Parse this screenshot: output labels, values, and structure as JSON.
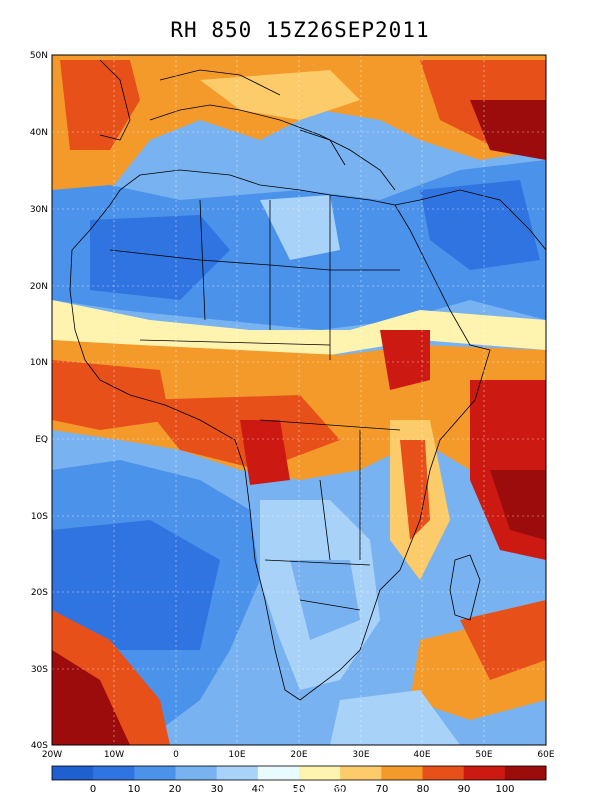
{
  "title": "RH 850 15Z26SEP2011",
  "watermark": "albran.com",
  "lat_labels": [
    "50N",
    "40N",
    "30N",
    "20N",
    "10N",
    "EQ",
    "10S",
    "20S",
    "30S",
    "40S"
  ],
  "lon_labels": [
    "20W",
    "10W",
    "0",
    "10E",
    "20E",
    "30E",
    "40E",
    "50E",
    "60E"
  ],
  "colorbar": {
    "labels": [
      "0",
      "10",
      "20",
      "30",
      "40",
      "50",
      "60",
      "70",
      "80",
      "90",
      "100"
    ],
    "colors": [
      "#1f5fd0",
      "#2f74e0",
      "#4a92ea",
      "#78b2f0",
      "#a8d2f8",
      "#e8fbff",
      "#fff3b0",
      "#fccb6a",
      "#f39a2a",
      "#e8501a",
      "#cc1a12",
      "#9c0c0c"
    ]
  }
}
